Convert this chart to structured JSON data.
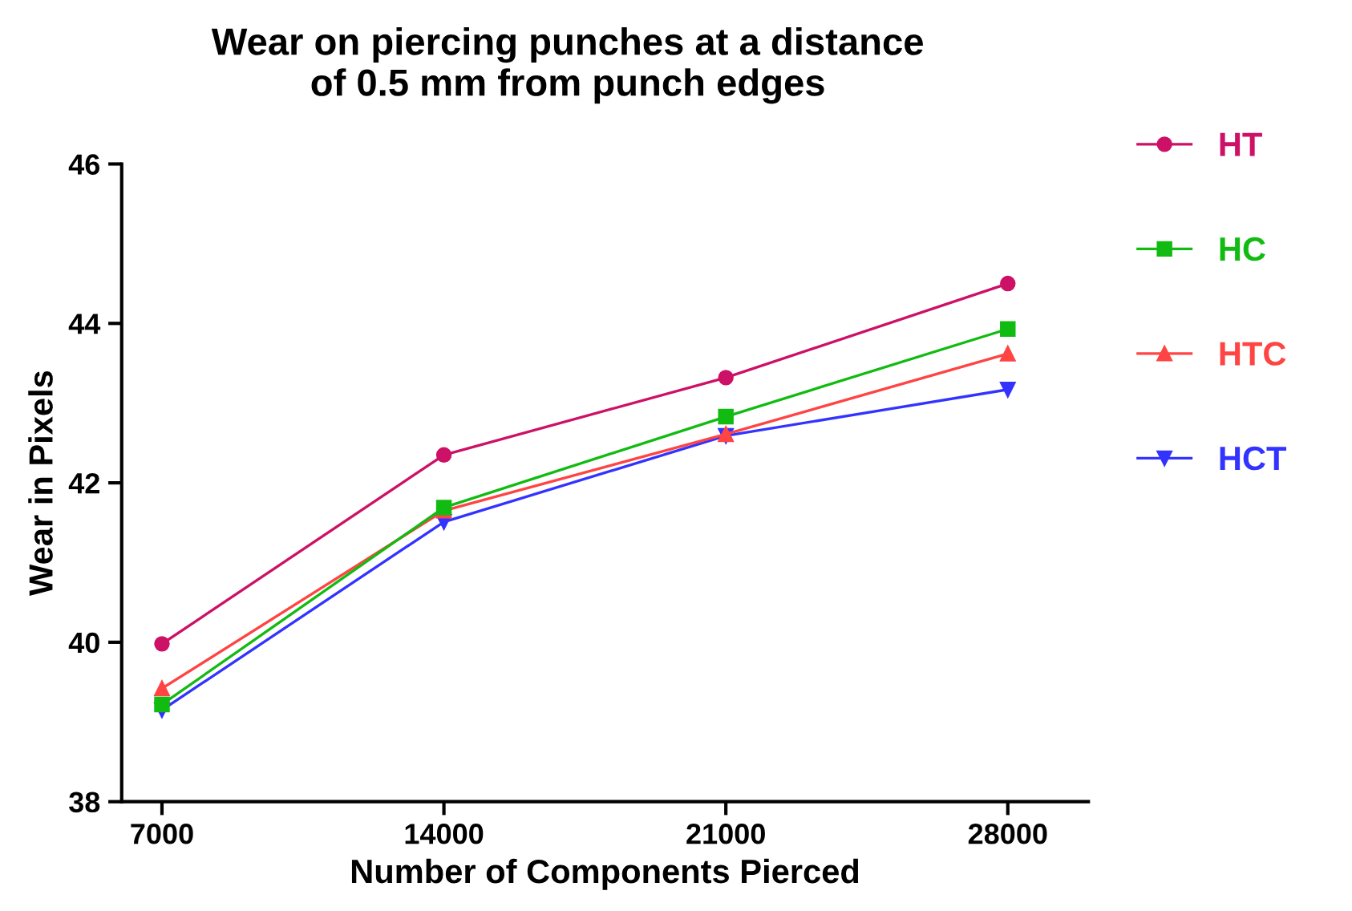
{
  "chart_data": {
    "type": "line",
    "title": "Wear on piercing punches at a distance\nof 0.5 mm from punch edges",
    "xlabel": "Number of Components Pierced",
    "ylabel": "Wear in Pixels",
    "x": [
      7000,
      14000,
      21000,
      28000
    ],
    "series": [
      {
        "name": "HT",
        "color": "#cc1166",
        "marker": "circle",
        "values": [
          39.98,
          42.35,
          43.32,
          44.5
        ]
      },
      {
        "name": "HC",
        "color": "#11bb11",
        "marker": "square",
        "values": [
          39.22,
          41.69,
          42.83,
          43.93
        ]
      },
      {
        "name": "HTC",
        "color": "#ff4444",
        "marker": "triangle",
        "values": [
          39.42,
          41.65,
          42.61,
          43.62
        ]
      },
      {
        "name": "HCT",
        "color": "#3333ff",
        "marker": "triangle-down",
        "values": [
          39.15,
          41.51,
          42.59,
          43.17
        ]
      }
    ],
    "xlim": [
      6000,
      30000
    ],
    "xticks": [
      7000,
      14000,
      21000,
      28000
    ],
    "ylim": [
      38,
      46
    ],
    "yticks": [
      38,
      40,
      42,
      44,
      46
    ],
    "grid": false,
    "legend": "right",
    "line_style": "solid"
  }
}
